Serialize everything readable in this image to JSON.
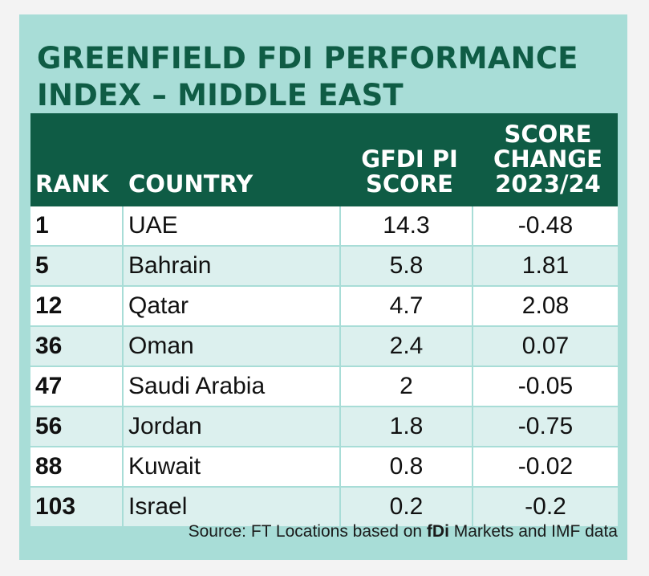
{
  "title": "GREENFIELD FDI PERFORMANCE INDEX – MIDDLE EAST",
  "source": {
    "prefix": "Source: FT Locations based on ",
    "bold": "fDi",
    "suffix": " Markets and IMF data"
  },
  "chart_data": {
    "type": "table",
    "columns": [
      "RANK",
      "COUNTRY",
      "GFDI PI SCORE",
      "SCORE CHANGE 2023/24"
    ],
    "column_lines": {
      "score": [
        "GFDI PI",
        "SCORE"
      ],
      "change": [
        "SCORE",
        "CHANGE",
        "2023/24"
      ]
    },
    "rows": [
      {
        "rank": "1",
        "country": "UAE",
        "score": "14.3",
        "change": "-0.48"
      },
      {
        "rank": "5",
        "country": "Bahrain",
        "score": "5.8",
        "change": "1.81"
      },
      {
        "rank": "12",
        "country": "Qatar",
        "score": "4.7",
        "change": "2.08"
      },
      {
        "rank": "36",
        "country": "Oman",
        "score": "2.4",
        "change": "0.07"
      },
      {
        "rank": "47",
        "country": "Saudi Arabia",
        "score": "2",
        "change": "-0.05"
      },
      {
        "rank": "56",
        "country": "Jordan",
        "score": "1.8",
        "change": "-0.75"
      },
      {
        "rank": "88",
        "country": "Kuwait",
        "score": "0.8",
        "change": "-0.02"
      },
      {
        "rank": "103",
        "country": "Israel",
        "score": "0.2",
        "change": "-0.2"
      }
    ]
  },
  "colors": {
    "background": "#a8ddd7",
    "header": "#0f5c45",
    "title": "#0f5c45",
    "row": "#ffffff"
  }
}
